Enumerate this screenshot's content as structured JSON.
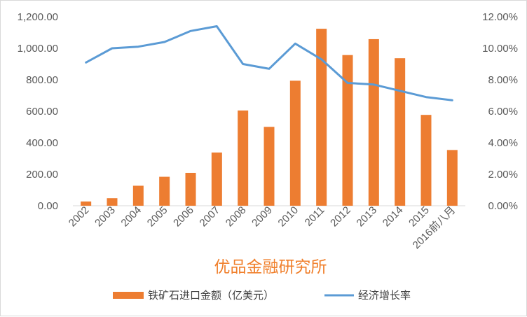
{
  "chart_data": {
    "type": "bar",
    "categories": [
      "2002",
      "2003",
      "2004",
      "2005",
      "2006",
      "2007",
      "2008",
      "2009",
      "2010",
      "2011",
      "2012",
      "2013",
      "2014",
      "2015",
      "2016前八月"
    ],
    "series": [
      {
        "name": "铁矿石进口金额（亿美元）",
        "type": "bar",
        "axis": "left",
        "color": "#ed7d31",
        "values": [
          27,
          48,
          127,
          184,
          209,
          338,
          605,
          501,
          794,
          1124,
          957,
          1058,
          937,
          577,
          354
        ]
      },
      {
        "name": "经济增长率",
        "type": "line",
        "axis": "right",
        "color": "#5b9bd5",
        "values": [
          0.091,
          0.1,
          0.101,
          0.104,
          0.111,
          0.114,
          0.09,
          0.087,
          0.103,
          0.093,
          0.078,
          0.077,
          0.073,
          0.069,
          0.067
        ]
      }
    ],
    "y_left": {
      "ylim": [
        0,
        1200
      ],
      "ticks": [
        "0.00",
        "200.00",
        "400.00",
        "600.00",
        "800.00",
        "1,000.00",
        "1,200.00"
      ]
    },
    "y_right": {
      "ylim": [
        0,
        0.12
      ],
      "ticks": [
        "0.00%",
        "2.00%",
        "4.00%",
        "6.00%",
        "8.00%",
        "10.00%",
        "12.00%"
      ]
    },
    "grid": false,
    "legend_position": "bottom"
  },
  "watermark": "优品金融研究所"
}
